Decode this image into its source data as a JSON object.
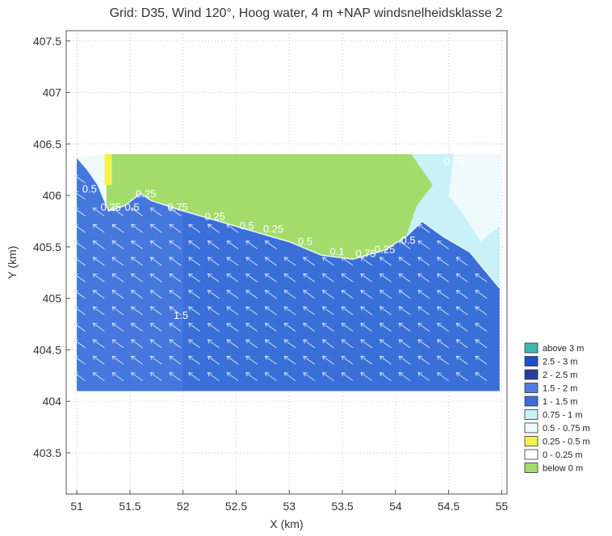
{
  "chart_data": {
    "type": "heatmap",
    "title": "Grid: D35, Wind 120°, Hoog water, 4 m +NAP windsnelheidsklasse 2",
    "xlabel": "X (km)",
    "ylabel": "Y (km)",
    "xlim": [
      50.9,
      55.05
    ],
    "ylim": [
      403.1,
      407.6
    ],
    "xticks": [
      "51",
      "51.5",
      "52",
      "52.5",
      "53",
      "53.5",
      "54",
      "54.5",
      "55"
    ],
    "yticks": [
      "403.5",
      "404",
      "404.5",
      "405",
      "405.5",
      "406",
      "406.5",
      "407",
      "407.5"
    ],
    "grid": true,
    "legend_position": "right",
    "legend": [
      {
        "label": "above 3 m",
        "color": "#3fb8b0"
      },
      {
        "label": "2.5 - 3 m",
        "color": "#1f4fc8"
      },
      {
        "label": "2 - 2.5 m",
        "color": "#2a3d9a"
      },
      {
        "label": "1.5 - 2 m",
        "color": "#4f7ee0"
      },
      {
        "label": "1 - 1.5 m",
        "color": "#3a6fd8"
      },
      {
        "label": "0.75 - 1 m",
        "color": "#c8f2f8"
      },
      {
        "label": "0.5 - 0.75 m",
        "color": "#eefafc"
      },
      {
        "label": "0.25 - 0.5 m",
        "color": "#f4f050"
      },
      {
        "label": "0 - 0.25 m",
        "color": "#ffffff"
      },
      {
        "label": "below 0 m",
        "color": "#a4dc6c"
      }
    ],
    "regions": {
      "land_top_y": 406.4,
      "land_x_range": [
        51.28,
        54.98
      ],
      "water_bottom_y": 404.1,
      "shoreline": [
        {
          "x": 51.0,
          "y": 406.37
        },
        {
          "x": 51.1,
          "y": 406.25
        },
        {
          "x": 51.2,
          "y": 406.1
        },
        {
          "x": 51.3,
          "y": 405.85
        },
        {
          "x": 51.45,
          "y": 405.9
        },
        {
          "x": 51.6,
          "y": 406.02
        },
        {
          "x": 51.7,
          "y": 405.95
        },
        {
          "x": 52.0,
          "y": 405.85
        },
        {
          "x": 52.5,
          "y": 405.7
        },
        {
          "x": 53.0,
          "y": 405.55
        },
        {
          "x": 53.3,
          "y": 405.42
        },
        {
          "x": 53.6,
          "y": 405.38
        },
        {
          "x": 53.9,
          "y": 405.47
        },
        {
          "x": 54.1,
          "y": 405.6
        },
        {
          "x": 54.25,
          "y": 405.75
        },
        {
          "x": 54.45,
          "y": 405.6
        },
        {
          "x": 54.7,
          "y": 405.45
        },
        {
          "x": 54.98,
          "y": 405.1
        }
      ]
    },
    "wind_direction_deg": 120,
    "contour_labels": [
      "0.5",
      "0.25",
      "0.5",
      "0.25",
      "0.75",
      "0.25",
      "0.5",
      "0.25",
      "0.5",
      "0.1",
      "0.75",
      "0.25",
      "0.5",
      "1.5",
      "0.75"
    ]
  }
}
